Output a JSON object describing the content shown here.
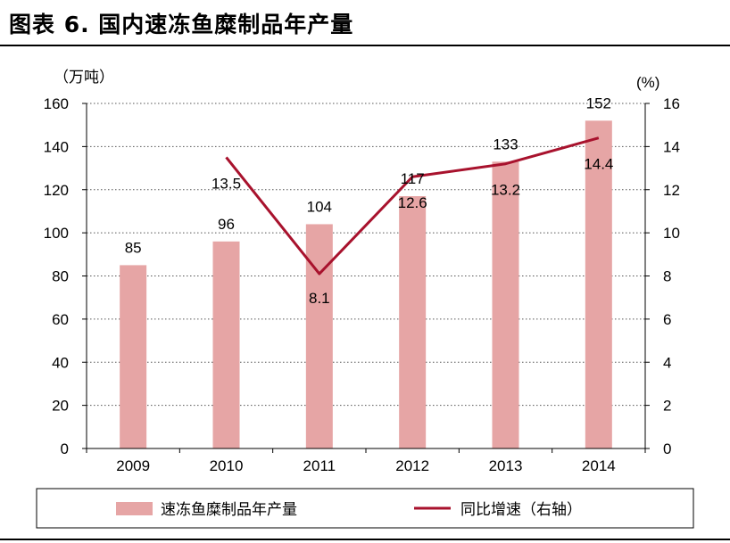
{
  "figure": {
    "title": "图表 6. 国内速冻鱼糜制品年产量"
  },
  "chart_data": {
    "type": "bar",
    "categories": [
      "2009",
      "2010",
      "2011",
      "2012",
      "2013",
      "2014"
    ],
    "series": [
      {
        "name": "速冻鱼糜制品年产量",
        "type": "bar",
        "axis": "left",
        "values": [
          85,
          96,
          104,
          117,
          133,
          152
        ],
        "color": "#e6a5a5"
      },
      {
        "name": "同比增速（右轴）",
        "type": "line",
        "axis": "right",
        "values": [
          null,
          13.5,
          8.1,
          12.6,
          13.2,
          14.4
        ],
        "color": "#a8122d"
      }
    ],
    "y_left": {
      "unit_label": "（万吨）",
      "ylim": [
        0,
        160
      ],
      "ticks": [
        0,
        20,
        40,
        60,
        80,
        100,
        120,
        140,
        160
      ]
    },
    "y_right": {
      "unit_label": "(%)",
      "ylim": [
        0,
        16
      ],
      "ticks": [
        0,
        2,
        4,
        6,
        8,
        10,
        12,
        14,
        16
      ]
    },
    "grid": "horizontal dotted",
    "legend_position": "bottom"
  }
}
